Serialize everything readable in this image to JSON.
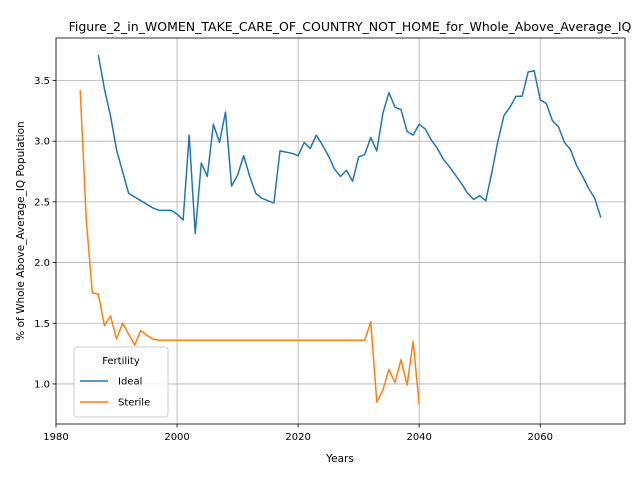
{
  "chart_data": {
    "type": "line",
    "title": "Figure_2_in_WOMEN_TAKE_CARE_OF_COUNTRY_NOT_HOME_for_Whole_Above_Average_IQ",
    "xlabel": "Years",
    "ylabel": "% of Whole Above_Average_IQ Population",
    "xlim": [
      1980,
      2074
    ],
    "ylim": [
      0.67,
      3.85
    ],
    "xticks": [
      1980,
      2000,
      2020,
      2040,
      2060
    ],
    "yticks": [
      1.0,
      1.5,
      2.0,
      2.5,
      3.0,
      3.5
    ],
    "grid": true,
    "legend": {
      "title": "Fertility",
      "placement": "lower-left"
    },
    "series": [
      {
        "name": "Ideal",
        "color": "#1f77b4",
        "x": [
          1987,
          1988,
          1989,
          1990,
          1991,
          1992,
          1993,
          1994,
          1995,
          1996,
          1997,
          1998,
          1999,
          2000,
          2001,
          2002,
          2003,
          2004,
          2005,
          2006,
          2007,
          2008,
          2009,
          2010,
          2011,
          2012,
          2013,
          2014,
          2015,
          2016,
          2017,
          2018,
          2019,
          2020,
          2021,
          2022,
          2023,
          2024,
          2025,
          2026,
          2027,
          2028,
          2029,
          2030,
          2031,
          2032,
          2033,
          2034,
          2035,
          2036,
          2037,
          2038,
          2039,
          2040,
          2041,
          2042,
          2043,
          2044,
          2045,
          2046,
          2047,
          2048,
          2049,
          2050,
          2051,
          2052,
          2053,
          2054,
          2055,
          2056,
          2057,
          2058,
          2059,
          2060,
          2061,
          2062,
          2063,
          2064,
          2065,
          2066,
          2067,
          2068,
          2069,
          2070
        ],
        "values": [
          3.71,
          3.43,
          3.21,
          2.93,
          2.75,
          2.57,
          2.54,
          2.51,
          2.48,
          2.45,
          2.43,
          2.43,
          2.43,
          2.4,
          2.35,
          3.05,
          2.24,
          2.82,
          2.71,
          3.14,
          2.99,
          3.24,
          2.63,
          2.72,
          2.88,
          2.71,
          2.57,
          2.53,
          2.51,
          2.49,
          2.92,
          2.91,
          2.9,
          2.88,
          2.99,
          2.94,
          3.05,
          2.97,
          2.88,
          2.77,
          2.71,
          2.76,
          2.67,
          2.87,
          2.89,
          3.03,
          2.92,
          3.23,
          3.4,
          3.28,
          3.26,
          3.08,
          3.05,
          3.14,
          3.1,
          3.01,
          2.94,
          2.85,
          2.79,
          2.72,
          2.65,
          2.57,
          2.52,
          2.55,
          2.51,
          2.74,
          3.0,
          3.21,
          3.28,
          3.37,
          3.37,
          3.57,
          3.58,
          3.34,
          3.31,
          3.17,
          3.12,
          2.99,
          2.93,
          2.8,
          2.71,
          2.61,
          2.53,
          2.37
        ]
      },
      {
        "name": "Sterile",
        "color": "#ff7f0e",
        "x": [
          1984,
          1985,
          1986,
          1987,
          1988,
          1989,
          1990,
          1991,
          1992,
          1993,
          1994,
          1995,
          1996,
          1997,
          1998,
          1999,
          2000,
          2005,
          2010,
          2015,
          2020,
          2025,
          2030,
          2031,
          2032,
          2033,
          2034,
          2035,
          2036,
          2037,
          2038,
          2039,
          2040
        ],
        "values": [
          3.42,
          2.35,
          1.75,
          1.74,
          1.48,
          1.56,
          1.37,
          1.5,
          1.41,
          1.32,
          1.44,
          1.4,
          1.37,
          1.36,
          1.36,
          1.36,
          1.36,
          1.36,
          1.36,
          1.36,
          1.36,
          1.36,
          1.36,
          1.36,
          1.51,
          0.85,
          0.95,
          1.12,
          1.01,
          1.2,
          0.99,
          1.35,
          0.83
        ]
      }
    ]
  }
}
